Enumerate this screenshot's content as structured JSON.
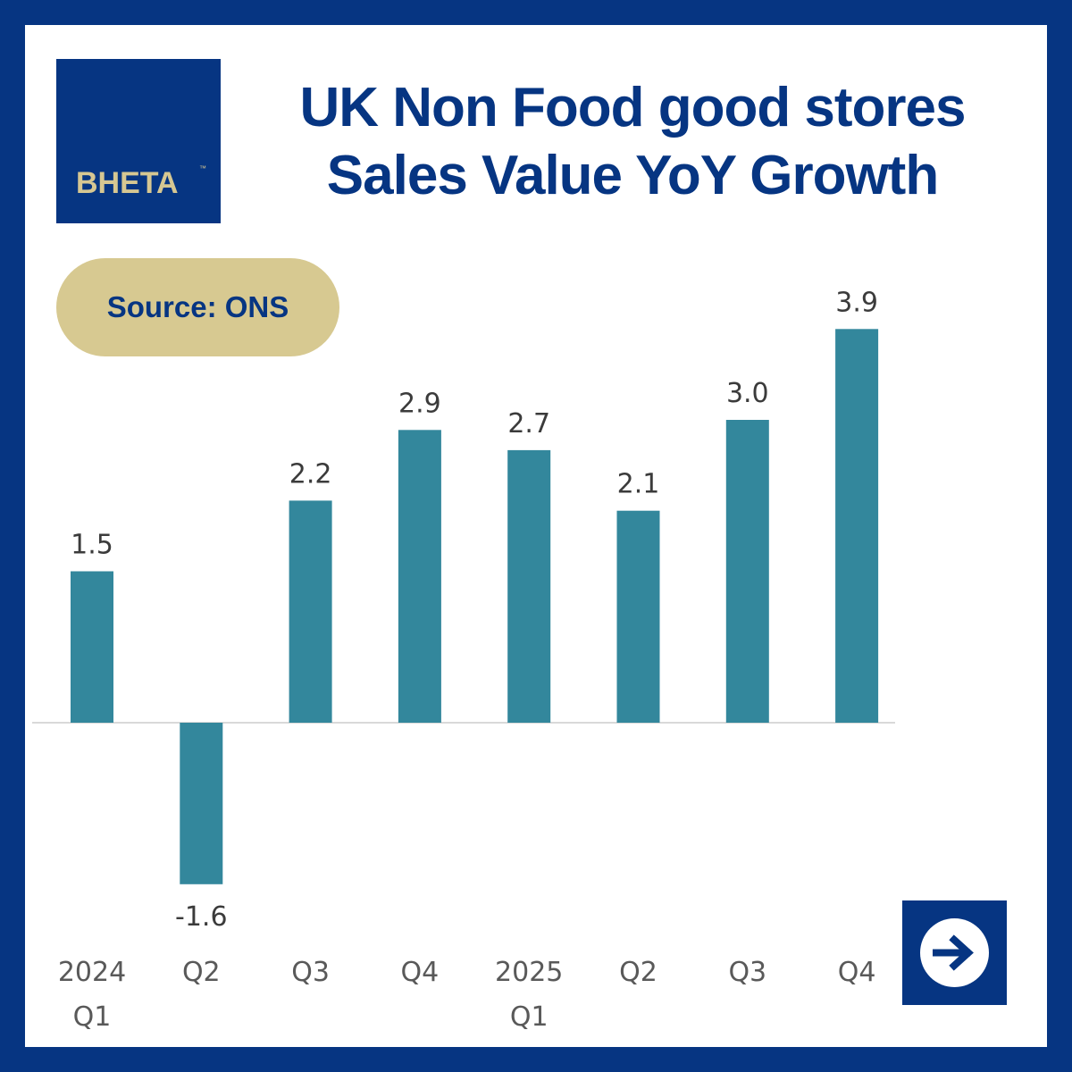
{
  "brand": {
    "logo_text": "BHETA",
    "trademark": "™",
    "primary_color": "#063582",
    "accent_color": "#d7c991"
  },
  "header": {
    "title_line1": "UK Non Food good stores",
    "title_line2": "Sales Value YoY Growth"
  },
  "source": {
    "label": "Source: ONS"
  },
  "chart_data": {
    "type": "bar",
    "title": "UK Non Food good stores Sales Value YoY Growth",
    "xlabel": "",
    "ylabel": "",
    "categories": [
      "2024 Q1",
      "Q2",
      "Q3",
      "Q4",
      "2025 Q1",
      "Q2",
      "Q3",
      "Q4"
    ],
    "category_lines": [
      [
        "2024",
        "Q1"
      ],
      [
        "Q2"
      ],
      [
        "Q3"
      ],
      [
        "Q4"
      ],
      [
        "2025",
        "Q1"
      ],
      [
        "Q2"
      ],
      [
        "Q3"
      ],
      [
        "Q4"
      ]
    ],
    "values": [
      1.5,
      -1.6,
      2.2,
      2.9,
      2.7,
      2.1,
      3.0,
      3.9
    ],
    "value_labels": [
      "1.5",
      "-1.6",
      "2.2",
      "2.9",
      "2.7",
      "2.1",
      "3.0",
      "3.9"
    ],
    "bar_color": "#33879c",
    "ylim": [
      -2.5,
      4.5
    ],
    "grid": false
  },
  "navigation": {
    "next_icon": "arrow-right-icon"
  }
}
